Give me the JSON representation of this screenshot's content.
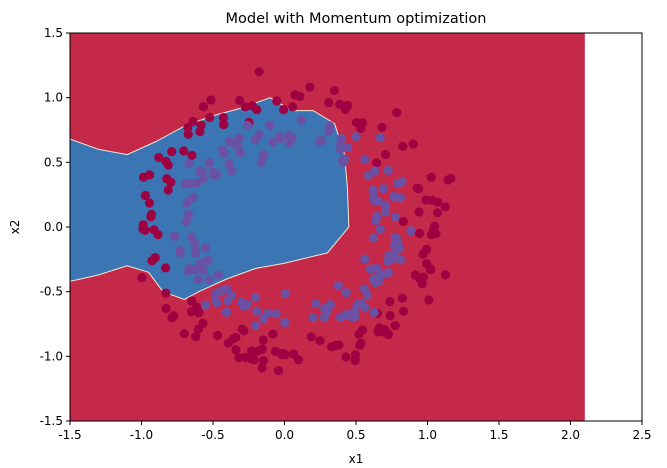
{
  "chart_data": {
    "type": "scatter",
    "title": "Model with Momentum optimization",
    "xlabel": "x1",
    "ylabel": "x2",
    "xlim": [
      -1.5,
      2.5
    ],
    "ylim": [
      -1.5,
      1.5
    ],
    "grid": false,
    "x_ticks": [
      "-1.5",
      "-1.0",
      "-0.5",
      "0.0",
      "0.5",
      "1.0",
      "1.5",
      "2.0",
      "2.5"
    ],
    "y_ticks": [
      "-1.5",
      "-1.0",
      "-0.5",
      "0.0",
      "0.5",
      "1.0",
      "1.5"
    ],
    "x_tick_values": [
      -1.5,
      -1.0,
      -0.5,
      0.0,
      0.5,
      1.0,
      1.5,
      2.0,
      2.5
    ],
    "y_tick_values": [
      -1.5,
      -1.0,
      -0.5,
      0.0,
      0.5,
      1.0,
      1.5
    ],
    "colors": {
      "region_outer": "#c4294a",
      "region_inner": "#3b75b3",
      "class_0": "#9e0142",
      "class_1": "#6a51a3"
    },
    "decision_region_inner": {
      "fill_extent_x": [
        -1.5,
        2.1
      ],
      "boundary": [
        [
          -1.5,
          0.68
        ],
        [
          -1.3,
          0.6
        ],
        [
          -1.1,
          0.56
        ],
        [
          -0.9,
          0.66
        ],
        [
          -0.7,
          0.78
        ],
        [
          -0.5,
          0.86
        ],
        [
          -0.3,
          0.92
        ],
        [
          -0.1,
          1.0
        ],
        [
          0.05,
          0.9
        ],
        [
          0.2,
          0.9
        ],
        [
          0.35,
          0.8
        ],
        [
          0.42,
          0.56
        ],
        [
          0.44,
          0.3
        ],
        [
          0.45,
          0.0
        ],
        [
          0.3,
          -0.2
        ],
        [
          0.0,
          -0.28
        ],
        [
          -0.2,
          -0.32
        ],
        [
          -0.4,
          -0.4
        ],
        [
          -0.6,
          -0.5
        ],
        [
          -0.7,
          -0.56
        ],
        [
          -0.85,
          -0.5
        ],
        [
          -0.95,
          -0.35
        ],
        [
          -1.1,
          -0.3
        ],
        [
          -1.3,
          -0.37
        ],
        [
          -1.5,
          -0.42
        ]
      ]
    },
    "series": [
      {
        "name": "",
        "class": 0,
        "points": []
      },
      {
        "name": "",
        "class": 1,
        "points": []
      }
    ]
  }
}
